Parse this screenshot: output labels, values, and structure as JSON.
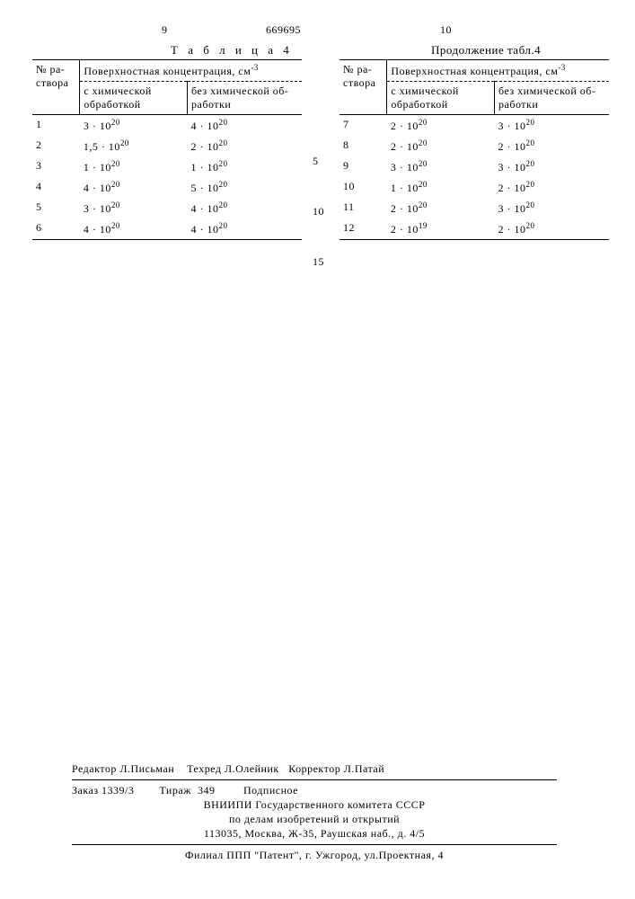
{
  "header": {
    "left_col_num": "9",
    "doc_number": "669695",
    "right_col_num": "10"
  },
  "titles": {
    "left": "Т а б л и ц а 4",
    "right": "Продолжение табл.4"
  },
  "line_numbers": {
    "n5": "5",
    "n10": "10",
    "n15": "15"
  },
  "table_headers": {
    "col1": "№ ра-створа",
    "col_span": "Поверхностная концентрация, см",
    "col_span_exp": "-3",
    "col2": "с химической обработкой",
    "col3": "без химической об-работки"
  },
  "left_rows": [
    {
      "n": "1",
      "a_base": "3 · 10",
      "a_exp": "20",
      "b_base": "4 · 10",
      "b_exp": "20"
    },
    {
      "n": "2",
      "a_base": "1,5 · 10",
      "a_exp": "20",
      "b_base": "2 · 10",
      "b_exp": "20"
    },
    {
      "n": "3",
      "a_base": "1 · 10",
      "a_exp": "20",
      "b_base": "1 · 10",
      "b_exp": "20"
    },
    {
      "n": "4",
      "a_base": "4 · 10",
      "a_exp": "20",
      "b_base": "5 · 10",
      "b_exp": "20"
    },
    {
      "n": "5",
      "a_base": "3 · 10",
      "a_exp": "20",
      "b_base": "4 · 10",
      "b_exp": "20"
    },
    {
      "n": "6",
      "a_base": "4 · 10",
      "a_exp": "20",
      "b_base": "4 · 10",
      "b_exp": "20"
    }
  ],
  "right_rows": [
    {
      "n": "7",
      "a_base": "2 · 10",
      "a_exp": "20",
      "b_base": "3 · 10",
      "b_exp": "20"
    },
    {
      "n": "8",
      "a_base": "2 · 10",
      "a_exp": "20",
      "b_base": "2 · 10",
      "b_exp": "20"
    },
    {
      "n": "9",
      "a_base": "3 · 10",
      "a_exp": "20",
      "b_base": "3 · 10",
      "b_exp": "20"
    },
    {
      "n": "10",
      "a_base": "1 · 10",
      "a_exp": "20",
      "b_base": "2 · 10",
      "b_exp": "20"
    },
    {
      "n": "11",
      "a_base": "2 · 10",
      "a_exp": "20",
      "b_base": "3 · 10",
      "b_exp": "20"
    },
    {
      "n": "12",
      "a_base": "2 · 10",
      "a_exp": "19",
      "b_base": "2 · 10",
      "b_exp": "20"
    }
  ],
  "footer": {
    "line1_a": "Редактор Л.Письман",
    "line1_b": "Техред Л.Олейник",
    "line1_c": "Корректор Л.Патай",
    "line2_a": "Заказ 1339/3",
    "line2_b": "Тираж  349",
    "line2_c": "Подписное",
    "line3": "ВНИИПИ Государственного комитета СССР",
    "line4": "по делам изобретений и открытий",
    "line5": "113035, Москва, Ж-35, Раушская наб., д. 4/5",
    "line6": "Филиал ППП \"Патент\", г. Ужгород, ул.Проектная, 4"
  }
}
